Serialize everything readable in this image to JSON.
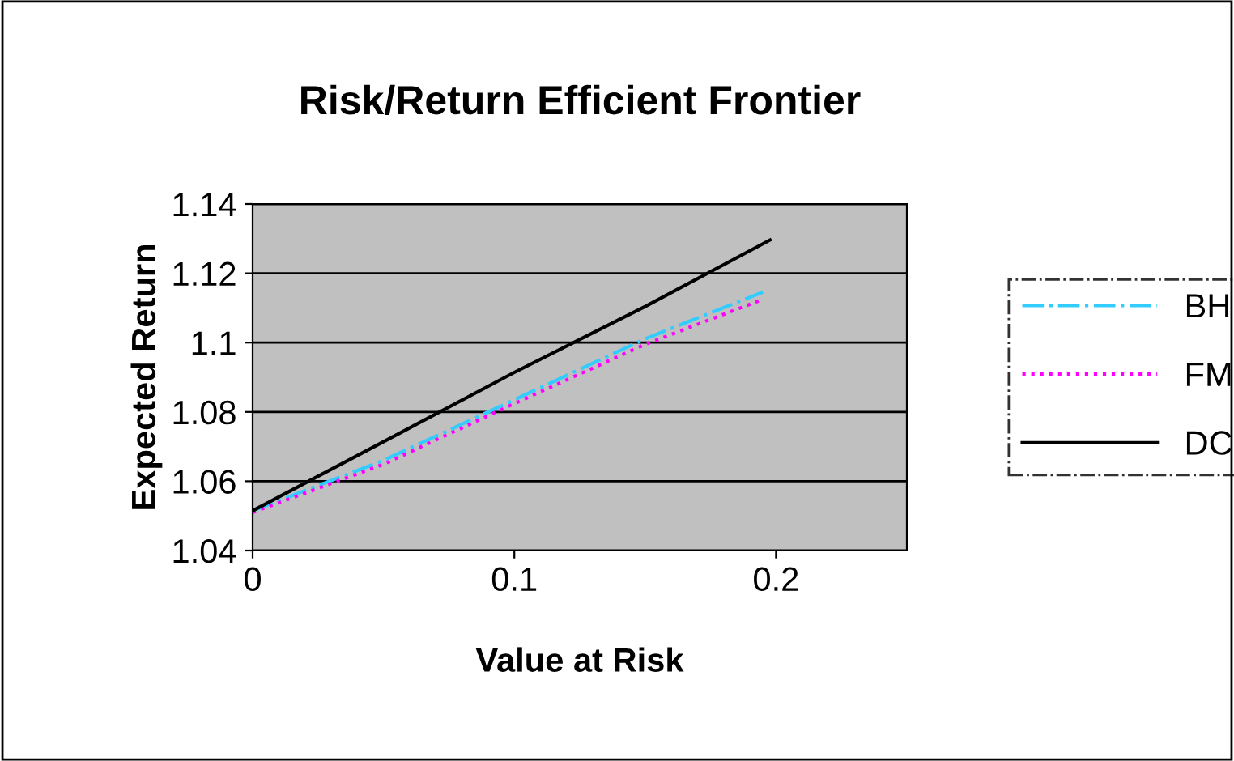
{
  "chart_data": {
    "type": "line",
    "title": "Risk/Return Efficient Frontier",
    "xlabel": "Value at Risk",
    "ylabel": "Expected Return",
    "xlim": [
      0,
      0.25
    ],
    "xticks": [
      0,
      0.1,
      0.2
    ],
    "ylim": [
      1.04,
      1.14
    ],
    "yticks": [
      1.04,
      1.06,
      1.08,
      1.1,
      1.12,
      1.14
    ],
    "grid": "y",
    "legend": "right",
    "marker": "none",
    "series": [
      {
        "name": "BH",
        "color": "#33ccff",
        "line_style": "dashdot",
        "x": [
          0,
          0.05,
          0.1,
          0.15,
          0.195
        ],
        "values": [
          1.0515,
          1.066,
          1.0835,
          1.1011,
          1.1146
        ]
      },
      {
        "name": "FM",
        "color": "#ff00ff",
        "line_style": "dotted",
        "x": [
          0,
          0.05,
          0.1,
          0.15,
          0.195
        ],
        "values": [
          1.051,
          1.0649,
          1.0824,
          1.0995,
          1.1125
        ]
      },
      {
        "name": "DC",
        "color": "#000000",
        "line_style": "solid",
        "x": [
          0,
          0.05,
          0.1,
          0.15,
          0.1977
        ],
        "values": [
          1.0515,
          1.0714,
          1.0914,
          1.1104,
          1.1296
        ]
      }
    ]
  }
}
